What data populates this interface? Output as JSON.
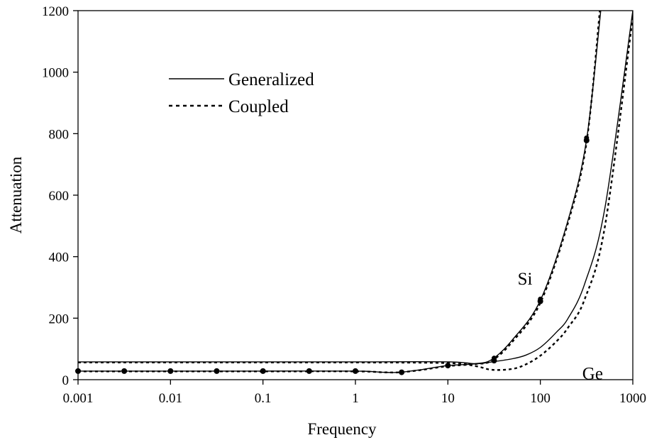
{
  "chart_data": {
    "type": "line",
    "xlabel": "Frequency",
    "ylabel": "Attenuation",
    "xscale": "log",
    "xlim": [
      0.001,
      1000
    ],
    "ylim": [
      0,
      1200
    ],
    "xticks": [
      "0.001",
      "0.01",
      "0.1",
      "1",
      "10",
      "100",
      "1000"
    ],
    "yticks": [
      "0",
      "200",
      "400",
      "600",
      "800",
      "1000",
      "1200"
    ],
    "grid": false,
    "legend": {
      "placement": "upper-left",
      "entries": [
        {
          "label": "Generalized",
          "style": "solid"
        },
        {
          "label": "Coupled",
          "style": "dotted"
        }
      ]
    },
    "annotations": [
      {
        "text": "Si",
        "x": 100,
        "y": 330
      },
      {
        "text": "Ge",
        "x": 500,
        "y": 22
      }
    ],
    "series": [
      {
        "material": "Si",
        "model": "Generalized",
        "style": "solid",
        "x": [
          0.001,
          0.01,
          0.1,
          1,
          2,
          3,
          5,
          10,
          20,
          30,
          50,
          100,
          200,
          316,
          450
        ],
        "y": [
          28,
          28,
          28,
          28,
          24,
          24,
          32,
          46,
          52,
          66,
          130,
          258,
          520,
          780,
          1200
        ]
      },
      {
        "material": "Si",
        "model": "Coupled",
        "style": "dotted",
        "x": [
          0.001,
          0.01,
          0.1,
          1,
          2,
          3,
          5,
          10,
          20,
          30,
          50,
          100,
          200,
          316,
          440
        ],
        "y": [
          27,
          27,
          27,
          27,
          24,
          24,
          31,
          44,
          51,
          62,
          124,
          250,
          512,
          772,
          1200
        ]
      },
      {
        "material": "Ge",
        "model": "Generalized",
        "style": "solid",
        "x": [
          0.001,
          0.01,
          0.1,
          1,
          10,
          20,
          30,
          50,
          70,
          100,
          150,
          200,
          300,
          500,
          1000
        ],
        "y": [
          58,
          58,
          58,
          58,
          58,
          52,
          58,
          68,
          80,
          105,
          155,
          200,
          310,
          560,
          1200
        ]
      },
      {
        "material": "Ge",
        "model": "Coupled",
        "style": "dotted",
        "x": [
          0.001,
          0.01,
          0.1,
          1,
          10,
          20,
          30,
          50,
          70,
          100,
          150,
          200,
          300,
          500,
          1000
        ],
        "y": [
          56,
          56,
          56,
          56,
          54,
          44,
          32,
          35,
          50,
          78,
          125,
          170,
          260,
          500,
          1180
        ]
      }
    ],
    "markers": {
      "x": [
        0.001,
        0.00316,
        0.01,
        0.0316,
        0.1,
        0.316,
        1,
        3.16,
        10,
        31.6,
        100,
        316
      ],
      "y": [
        28,
        28,
        28,
        28,
        28,
        28,
        28,
        24,
        46,
        62,
        255,
        778
      ]
    },
    "extra_markers": {
      "x": [
        31.6,
        100,
        316
      ],
      "y": [
        70,
        262,
        786
      ]
    }
  }
}
